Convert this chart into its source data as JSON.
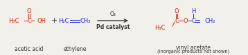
{
  "bg_color": "#f2f0eb",
  "red": "#cc2200",
  "blue": "#2222cc",
  "black": "#333333",
  "fig_width": 3.58,
  "fig_height": 0.8,
  "dpi": 100,
  "label_acetic": "acetic acid",
  "label_ethylene": "ethylene",
  "label_vinyl": "vinyl acetate",
  "label_inorganic": "(inorganic products not shown)",
  "label_O2": "O₂",
  "label_catalyst": "Pd catalyst"
}
